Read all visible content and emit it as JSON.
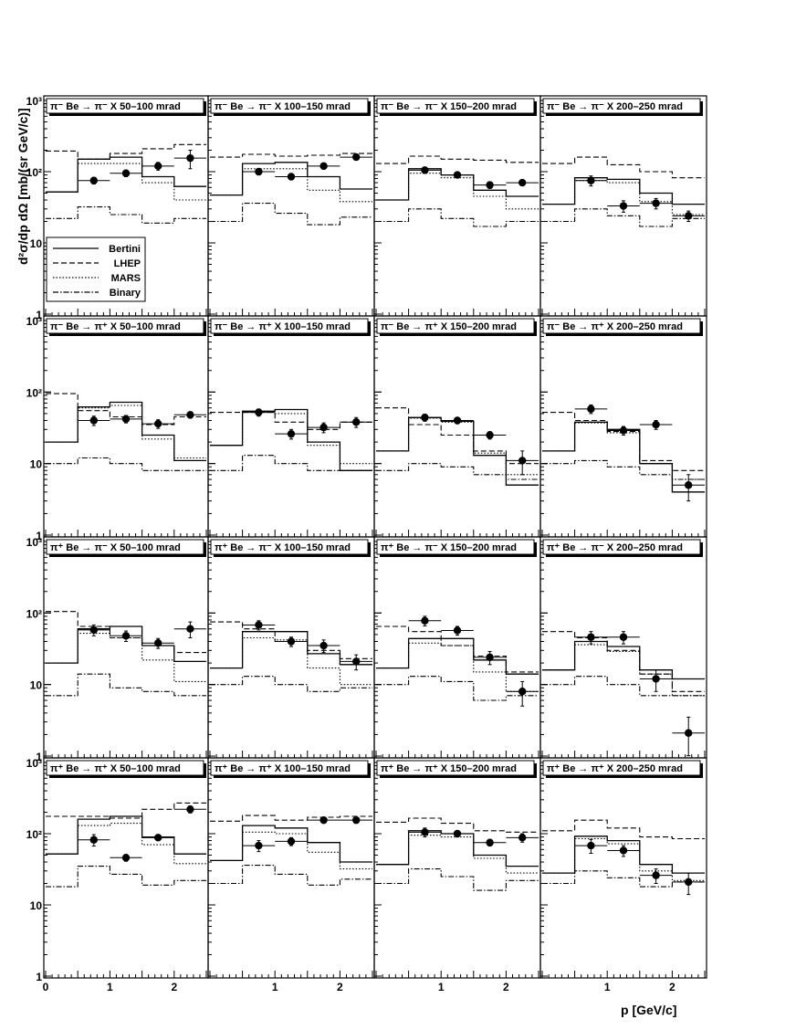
{
  "figure": {
    "ylabel": "d²σ/dp dΩ [mb/(sr GeV/c)]",
    "xlabel": "p [GeV/c]"
  },
  "legend": {
    "entries": [
      {
        "label": "Bertini",
        "style": "solid"
      },
      {
        "label": "LHEP",
        "style": "dashed"
      },
      {
        "label": "MARS",
        "style": "dotted"
      },
      {
        "label": "Binary",
        "style": "dashdot"
      }
    ]
  },
  "axis": {
    "x_ticks": [
      "0",
      "1",
      "2"
    ],
    "y_ticks": [
      "1",
      "10",
      "10²",
      "10³"
    ]
  },
  "chart_data": {
    "type": "histogram-grid",
    "xlim": [
      0,
      2.5
    ],
    "ylim": [
      1,
      1000
    ],
    "yscale": "log",
    "bin_edges": [
      0,
      0.5,
      1.0,
      1.5,
      2.0,
      2.5
    ],
    "data_x": [
      0.75,
      1.25,
      1.75,
      2.25
    ],
    "data_xerr": 0.25,
    "panels": [
      {
        "title": "π⁻ Be → π⁻ X   50–100 mrad",
        "bertini": [
          52,
          150,
          160,
          85,
          62
        ],
        "lhep": [
          195,
          150,
          180,
          210,
          240
        ],
        "mars": [
          52,
          130,
          130,
          70,
          40
        ],
        "binary": [
          22,
          32,
          25,
          19,
          22
        ],
        "data": [
          75,
          95,
          120,
          155
        ],
        "err": [
          8,
          10,
          15,
          45
        ]
      },
      {
        "title": "π⁻ Be → π⁻ X   100–150 mrad",
        "bertini": [
          47,
          130,
          135,
          85,
          57
        ],
        "lhep": [
          160,
          175,
          165,
          170,
          180
        ],
        "mars": [
          47,
          110,
          110,
          55,
          38
        ],
        "binary": [
          20,
          36,
          26,
          18,
          23
        ],
        "data": [
          100,
          85,
          120,
          160
        ],
        "err": [
          10,
          8,
          12,
          15
        ]
      },
      {
        "title": "π⁻ Be → π⁻ X   150–200 mrad",
        "bertini": [
          40,
          110,
          90,
          55,
          45
        ],
        "lhep": [
          130,
          165,
          150,
          145,
          135
        ],
        "mars": [
          40,
          95,
          82,
          45,
          30
        ],
        "binary": [
          20,
          30,
          22,
          17,
          20
        ],
        "data": [
          105,
          90,
          65,
          70
        ],
        "err": [
          10,
          8,
          7,
          6
        ]
      },
      {
        "title": "π⁻ Be → π⁻ X   200–250 mrad",
        "bertini": [
          35,
          82,
          78,
          50,
          35
        ],
        "lhep": [
          130,
          160,
          125,
          100,
          82
        ],
        "mars": [
          35,
          75,
          70,
          38,
          25
        ],
        "binary": [
          20,
          30,
          24,
          17,
          22
        ],
        "data": [
          75,
          33,
          36,
          24
        ],
        "err": [
          12,
          6,
          6,
          4
        ]
      },
      {
        "title": "π⁻ Be → π⁺ X   50–100 mrad",
        "bertini": [
          20,
          62,
          72,
          25,
          11
        ],
        "lhep": [
          95,
          55,
          45,
          35,
          45
        ],
        "mars": [
          20,
          60,
          65,
          22,
          12
        ],
        "binary": [
          10,
          12,
          10,
          8,
          8
        ],
        "data": [
          40,
          42,
          36,
          48
        ],
        "err": [
          6,
          5,
          5,
          5
        ]
      },
      {
        "title": "π⁻ Be → π⁺ X   100–150 mrad",
        "bertini": [
          18,
          54,
          57,
          20,
          8
        ],
        "lhep": [
          52,
          52,
          38,
          30,
          38
        ],
        "mars": [
          18,
          52,
          50,
          18,
          10
        ],
        "binary": [
          8,
          13,
          10,
          8,
          8
        ],
        "data": [
          52,
          26,
          32,
          38
        ],
        "err": [
          6,
          4,
          5,
          6
        ]
      },
      {
        "title": "π⁻ Be → π⁺ X   150–200 mrad",
        "bertini": [
          15,
          44,
          39,
          13,
          5
        ],
        "lhep": [
          60,
          35,
          25,
          15,
          10
        ],
        "mars": [
          15,
          43,
          38,
          14,
          7
        ],
        "binary": [
          8,
          10,
          9,
          7,
          6
        ],
        "data": [
          44,
          40,
          25,
          11
        ],
        "err": [
          5,
          4,
          3,
          4
        ]
      },
      {
        "title": "π⁻ Be → π⁺ X   200–250 mrad",
        "bertini": [
          15,
          38,
          30,
          10,
          4
        ],
        "lhep": [
          52,
          40,
          28,
          11,
          8
        ],
        "mars": [
          15,
          37,
          27,
          10,
          6
        ],
        "binary": [
          10,
          11,
          9,
          7,
          6
        ],
        "data": [
          58,
          29,
          35,
          5
        ],
        "err": [
          8,
          4,
          5,
          2
        ]
      },
      {
        "title": "π⁺ Be → π⁻ X   50–100 mrad",
        "bertini": [
          20,
          60,
          65,
          35,
          21
        ],
        "lhep": [
          105,
          65,
          45,
          35,
          28
        ],
        "mars": [
          20,
          52,
          45,
          22,
          11
        ],
        "binary": [
          7,
          14,
          9,
          8,
          7
        ],
        "data": [
          58,
          48,
          38,
          60
        ],
        "err": [
          10,
          8,
          6,
          15
        ]
      },
      {
        "title": "π⁺ Be → π⁻ X   100–150 mrad",
        "bertini": [
          17,
          55,
          55,
          27,
          19
        ],
        "lhep": [
          75,
          60,
          40,
          30,
          23
        ],
        "mars": [
          17,
          45,
          42,
          17,
          10
        ],
        "binary": [
          10,
          13,
          10,
          8,
          9
        ],
        "data": [
          68,
          40,
          35,
          21
        ],
        "err": [
          10,
          6,
          7,
          5
        ]
      },
      {
        "title": "π⁺ Be → π⁻ X   150–200 mrad",
        "bertini": [
          17,
          44,
          44,
          22,
          14
        ],
        "lhep": [
          65,
          55,
          35,
          25,
          15
        ],
        "mars": [
          17,
          38,
          35,
          15,
          8
        ],
        "binary": [
          10,
          13,
          11,
          6,
          7
        ],
        "data": [
          78,
          57,
          24,
          8
        ],
        "err": [
          12,
          8,
          5,
          3
        ]
      },
      {
        "title": "π⁺ Be → π⁻ X   200–250 mrad",
        "bertini": [
          16,
          40,
          34,
          16,
          12
        ],
        "lhep": [
          55,
          45,
          30,
          14,
          8
        ],
        "mars": [
          16,
          36,
          29,
          14,
          7
        ],
        "binary": [
          10,
          13,
          10,
          7,
          7
        ],
        "data": [
          46,
          46,
          12,
          2.1
        ],
        "err": [
          9,
          9,
          4,
          1.4
        ]
      },
      {
        "title": "π⁺ Be → π⁺ X   50–100 mrad",
        "bertini": [
          52,
          160,
          175,
          90,
          52
        ],
        "lhep": [
          175,
          175,
          165,
          220,
          270
        ],
        "mars": [
          52,
          130,
          140,
          70,
          38
        ],
        "binary": [
          18,
          35,
          27,
          19,
          22
        ],
        "data": [
          82,
          46,
          88,
          220
        ],
        "err": [
          15,
          5,
          8,
          25
        ]
      },
      {
        "title": "π⁺ Be → π⁺ X   100–150 mrad",
        "bertini": [
          42,
          130,
          120,
          75,
          40
        ],
        "lhep": [
          150,
          180,
          155,
          170,
          175
        ],
        "mars": [
          42,
          105,
          100,
          55,
          32
        ],
        "binary": [
          20,
          36,
          27,
          19,
          23
        ],
        "data": [
          68,
          78,
          155,
          155
        ],
        "err": [
          12,
          10,
          15,
          15
        ]
      },
      {
        "title": "π⁺ Be → π⁺ X   150–200 mrad",
        "bertini": [
          37,
          110,
          100,
          50,
          35
        ],
        "lhep": [
          145,
          165,
          140,
          110,
          105
        ],
        "mars": [
          37,
          95,
          90,
          45,
          28
        ],
        "binary": [
          20,
          32,
          25,
          16,
          22
        ],
        "data": [
          105,
          100,
          75,
          88
        ],
        "err": [
          15,
          10,
          8,
          12
        ]
      },
      {
        "title": "π⁺ Be → π⁺ X   200–250 mrad",
        "bertini": [
          28,
          92,
          80,
          37,
          28
        ],
        "lhep": [
          110,
          155,
          120,
          90,
          85
        ],
        "mars": [
          28,
          85,
          72,
          30,
          22
        ],
        "binary": [
          20,
          30,
          24,
          18,
          21
        ],
        "data": [
          68,
          58,
          26,
          21
        ],
        "err": [
          15,
          10,
          6,
          7
        ]
      }
    ]
  }
}
